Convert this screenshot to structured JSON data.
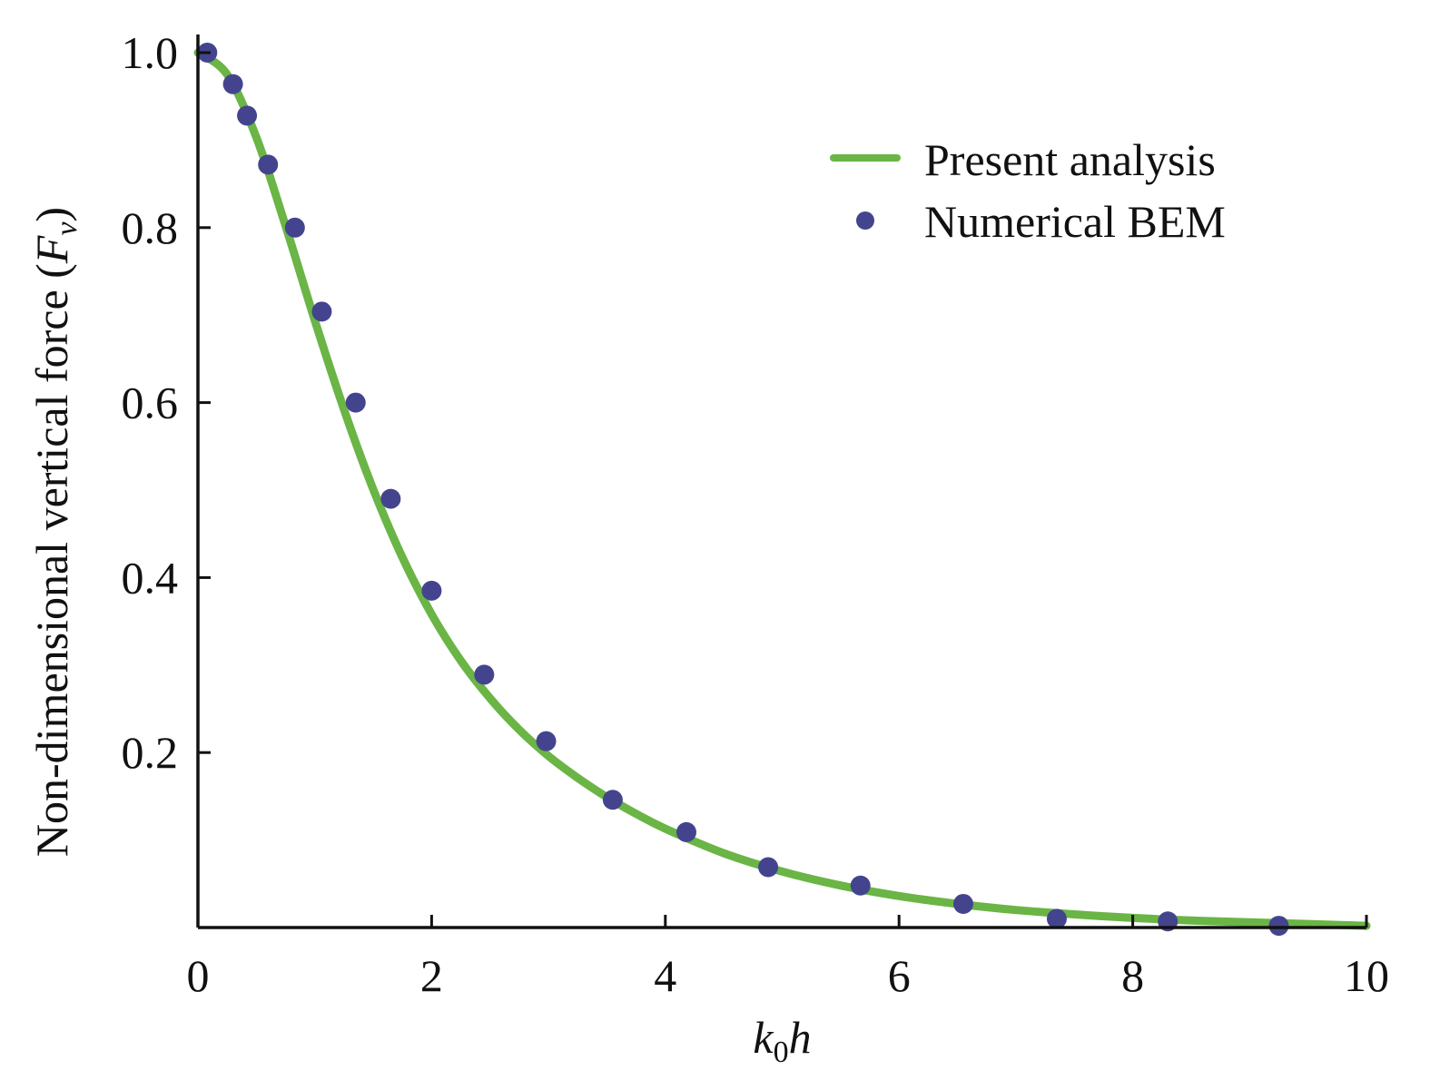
{
  "chart_data": {
    "type": "line",
    "title": "",
    "xlabel": {
      "base": "k",
      "sub": "0",
      "rest": "h"
    },
    "ylabel": {
      "text": "Non-dimensional vertical force (",
      "symbol": "F",
      "sub": "v",
      "close": ")"
    },
    "xlim": [
      0,
      10
    ],
    "ylim": [
      0,
      1.0
    ],
    "x_ticks": [
      0,
      2,
      4,
      6,
      8,
      10
    ],
    "x_tick_labels": [
      "0",
      "2",
      "4",
      "6",
      "8",
      "10"
    ],
    "y_ticks": [
      0.2,
      0.4,
      0.6,
      0.8,
      1.0
    ],
    "y_tick_labels": [
      "0.2",
      "0.4",
      "0.6",
      "0.8",
      "1.0"
    ],
    "grid": false,
    "legend_position": "top-right",
    "series": [
      {
        "name": "Present analysis",
        "kind": "line",
        "color": "#6ab545",
        "x": [
          0,
          0.25,
          0.5,
          0.75,
          1.0,
          1.25,
          1.5,
          1.75,
          2.0,
          2.25,
          2.5,
          2.75,
          3.0,
          3.25,
          3.5,
          3.75,
          4.0,
          4.5,
          5.0,
          5.5,
          6.0,
          6.5,
          7.0,
          7.5,
          8.0,
          8.5,
          9.0,
          9.5,
          10.0
        ],
        "y": [
          1.0,
          0.975,
          0.903,
          0.802,
          0.694,
          0.592,
          0.501,
          0.423,
          0.358,
          0.305,
          0.262,
          0.226,
          0.196,
          0.171,
          0.149,
          0.13,
          0.113,
          0.085,
          0.064,
          0.048,
          0.036,
          0.027,
          0.02,
          0.015,
          0.011,
          0.008,
          0.006,
          0.004,
          0.002
        ]
      },
      {
        "name": "Numerical BEM",
        "kind": "scatter",
        "color": "#44448e",
        "x": [
          0.08,
          0.3,
          0.42,
          0.6,
          0.83,
          1.06,
          1.35,
          1.65,
          2.0,
          2.45,
          2.98,
          3.55,
          4.18,
          4.88,
          5.67,
          6.55,
          7.35,
          8.3,
          9.25
        ],
        "y": [
          1.0,
          0.964,
          0.928,
          0.872,
          0.8,
          0.704,
          0.6,
          0.49,
          0.385,
          0.289,
          0.213,
          0.146,
          0.109,
          0.069,
          0.048,
          0.027,
          0.01,
          0.007,
          0.002
        ]
      }
    ]
  }
}
